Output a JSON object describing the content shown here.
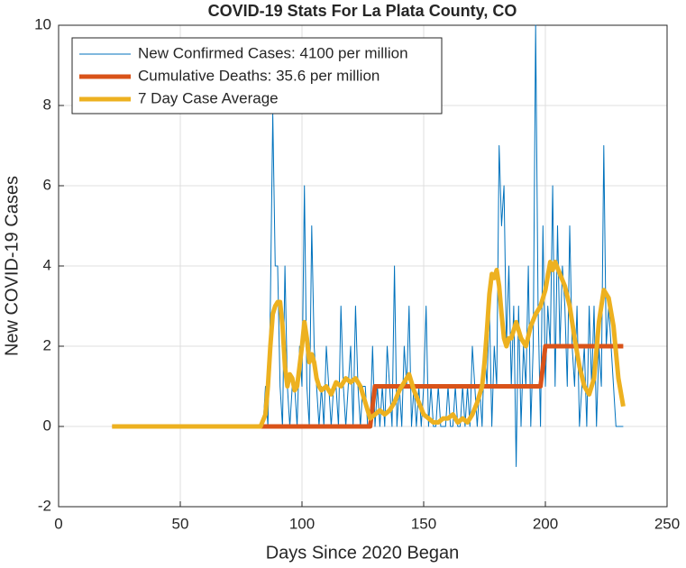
{
  "chart_data": {
    "type": "line",
    "title": "COVID-19 Stats For La Plata County, CO",
    "xlabel": "Days Since 2020 Began",
    "ylabel": "New COVID-19 Cases",
    "xlim": [
      0,
      250
    ],
    "xticks": [
      0,
      50,
      100,
      150,
      200,
      250
    ],
    "ylim": [
      -2,
      10
    ],
    "yticks": [
      -2,
      0,
      2,
      4,
      6,
      8,
      10
    ],
    "grid": true,
    "legend": "upper left",
    "series": [
      {
        "name": "New Confirmed Cases: 4100 per million",
        "color": "#0072bd",
        "width": 1,
        "x": [
          22,
          84,
          85,
          86,
          87,
          88,
          89,
          90,
          91,
          92,
          93,
          94,
          95,
          96,
          97,
          98,
          99,
          100,
          101,
          102,
          103,
          104,
          105,
          106,
          107,
          108,
          109,
          110,
          111,
          112,
          113,
          114,
          115,
          116,
          117,
          118,
          119,
          120,
          121,
          122,
          123,
          124,
          125,
          126,
          127,
          128,
          129,
          130,
          131,
          132,
          133,
          134,
          135,
          136,
          137,
          138,
          139,
          140,
          141,
          142,
          143,
          144,
          145,
          146,
          147,
          148,
          149,
          150,
          151,
          152,
          153,
          154,
          155,
          156,
          157,
          158,
          159,
          160,
          161,
          162,
          163,
          164,
          165,
          166,
          167,
          168,
          169,
          170,
          171,
          172,
          173,
          174,
          175,
          176,
          177,
          178,
          179,
          180,
          181,
          182,
          183,
          184,
          185,
          186,
          187,
          188,
          189,
          190,
          191,
          192,
          193,
          194,
          195,
          196,
          197,
          198,
          199,
          200,
          201,
          202,
          203,
          204,
          205,
          206,
          207,
          208,
          209,
          210,
          211,
          212,
          213,
          214,
          215,
          216,
          217,
          218,
          219,
          220,
          221,
          222,
          223,
          224,
          225,
          226,
          227,
          228,
          229,
          230,
          231,
          232
        ],
        "values": [
          0,
          0,
          1,
          0,
          3,
          7.8,
          4,
          4,
          1,
          0,
          4,
          1,
          0,
          1,
          1,
          0,
          2,
          1,
          6,
          1,
          0,
          5,
          2,
          1,
          0,
          1,
          0,
          2,
          1,
          0,
          1,
          1,
          0,
          3,
          1,
          0,
          1,
          2,
          0,
          3,
          1,
          0,
          1,
          1,
          0,
          0,
          2,
          0,
          1,
          0,
          1,
          0,
          2,
          1,
          0,
          4,
          0,
          1,
          0,
          2,
          1,
          3,
          0,
          1,
          0,
          1,
          0,
          1,
          3,
          0,
          1,
          0,
          0,
          1,
          0,
          0,
          0,
          1,
          0,
          0,
          1,
          0,
          0,
          1,
          0,
          1,
          0,
          2,
          1,
          0,
          1,
          0,
          2,
          1,
          3,
          0,
          2,
          1,
          7,
          5,
          6,
          2,
          4,
          1,
          3,
          -1,
          3,
          0,
          2,
          1,
          4,
          0,
          2,
          10,
          3,
          0,
          5,
          1,
          3,
          2,
          6,
          1,
          5,
          2,
          4,
          3,
          1,
          5,
          2,
          1,
          3,
          0,
          1,
          2,
          0,
          3,
          1,
          3,
          0,
          2,
          1,
          7,
          2,
          3,
          2,
          1,
          0,
          0,
          0,
          0
        ]
      },
      {
        "name": "Cumulative Deaths: 35.6 per million",
        "color": "#d95319",
        "width": 5,
        "x": [
          22,
          128,
          130,
          198,
          200,
          232
        ],
        "values": [
          0,
          0,
          1,
          1,
          2,
          2
        ]
      },
      {
        "name": "7 Day Case Average",
        "color": "#edb120",
        "width": 5,
        "x": [
          22,
          83,
          85,
          86,
          87,
          88,
          89,
          90,
          91,
          92,
          93,
          94,
          95,
          96,
          97,
          98,
          99,
          100,
          101,
          102,
          103,
          104,
          105,
          106,
          107,
          108,
          110,
          112,
          114,
          116,
          118,
          120,
          122,
          124,
          126,
          128,
          130,
          132,
          134,
          136,
          138,
          140,
          142,
          144,
          146,
          148,
          150,
          152,
          154,
          156,
          158,
          160,
          162,
          164,
          166,
          168,
          170,
          172,
          174,
          175,
          176,
          177,
          178,
          179,
          180,
          181,
          182,
          183,
          184,
          185,
          186,
          188,
          190,
          192,
          194,
          196,
          198,
          200,
          202,
          203,
          204,
          206,
          208,
          210,
          212,
          214,
          216,
          218,
          220,
          222,
          224,
          226,
          228,
          230,
          232
        ],
        "values": [
          0,
          0,
          0.3,
          1,
          2,
          2.8,
          3,
          3.1,
          3.1,
          2.5,
          1.5,
          1,
          1.3,
          1.2,
          0.9,
          1,
          1.5,
          2,
          2.6,
          2.2,
          1.6,
          1.8,
          1.6,
          1.2,
          1,
          0.9,
          1,
          0.8,
          1.1,
          1,
          1.2,
          1.1,
          1.2,
          1,
          0.6,
          0.2,
          0.3,
          0.4,
          0.3,
          0.4,
          0.6,
          0.9,
          1.1,
          1.3,
          0.9,
          0.6,
          0.3,
          0.2,
          0.1,
          0.1,
          0.2,
          0.2,
          0.3,
          0.1,
          0.2,
          0.1,
          0.3,
          0.6,
          1,
          1.6,
          2.4,
          3.3,
          3.8,
          3.7,
          3.9,
          3.5,
          2.8,
          2.2,
          2,
          2.2,
          2.2,
          2.6,
          2.2,
          2,
          2.5,
          2.8,
          3,
          3.4,
          4.1,
          3.9,
          4.1,
          3.8,
          3.5,
          3,
          2.2,
          1.5,
          1,
          0.8,
          1.2,
          2.6,
          3.4,
          3.2,
          2.5,
          1.2,
          0.5
        ]
      }
    ]
  }
}
